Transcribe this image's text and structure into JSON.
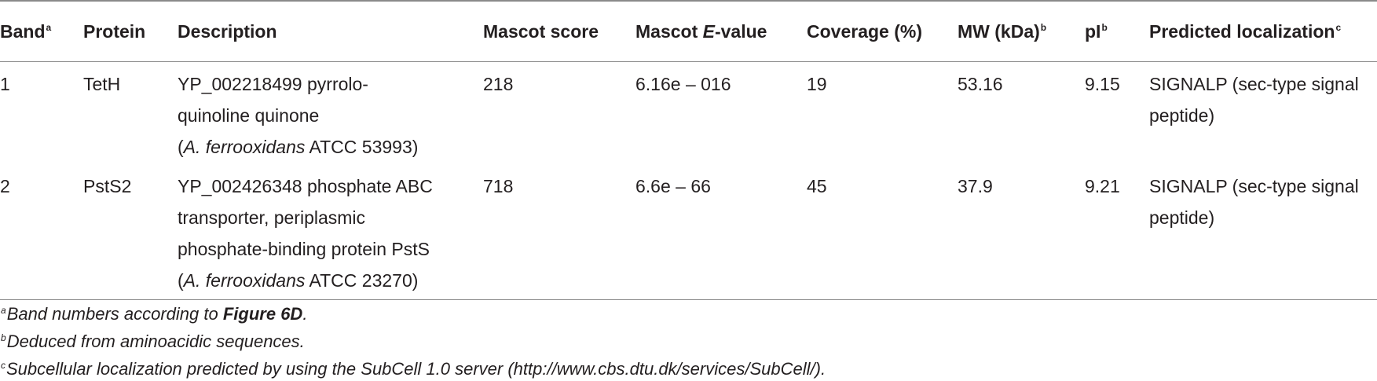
{
  "table": {
    "headers": {
      "band": "Band",
      "band_sup": "a",
      "protein": "Protein",
      "description": "Description",
      "mascot_score": "Mascot score",
      "mascot_evalue_pre": "Mascot ",
      "mascot_evalue_it": "E",
      "mascot_evalue_post": "-value",
      "coverage": "Coverage (%)",
      "mw": "MW (kDa)",
      "mw_sup": "b",
      "pi": "pI",
      "pi_sup": "b",
      "localization": "Predicted localization",
      "localization_sup": "c"
    },
    "rows": [
      {
        "band": "1",
        "protein": "TetH",
        "desc_line1": "YP_002218499 pyrrolo-",
        "desc_line2": "quinoline quinone",
        "desc_org_it": "A. ferrooxidans",
        "desc_org_rest": " ATCC 53993)",
        "mascot_score": "218",
        "mascot_evalue": "6.16e – 016",
        "coverage": "19",
        "mw": "53.16",
        "pi": "9.15",
        "localization": "SIGNALP (sec-type signal peptide)"
      },
      {
        "band": "2",
        "protein": "PstS2",
        "desc_line1": "YP_002426348 phosphate ABC",
        "desc_line2": "transporter, periplasmic",
        "desc_line3": "phosphate-binding protein PstS",
        "desc_org_it": "A. ferrooxidans",
        "desc_org_rest": " ATCC 23270)",
        "mascot_score": "718",
        "mascot_evalue": "6.6e – 66",
        "coverage": "45",
        "mw": "37.9",
        "pi": "9.21",
        "localization": "SIGNALP (sec-type signal peptide)"
      }
    ]
  },
  "footnotes": {
    "a_sup": "a",
    "a_text": "Band numbers according to ",
    "a_bold": "Figure 6D",
    "a_end": ".",
    "b_sup": "b",
    "b_text": "Deduced from aminoacidic sequences.",
    "c_sup": "c",
    "c_text": "Subcellular localization predicted by using the SubCell 1.0 server (http://www.cbs.dtu.dk/services/SubCell/)."
  }
}
